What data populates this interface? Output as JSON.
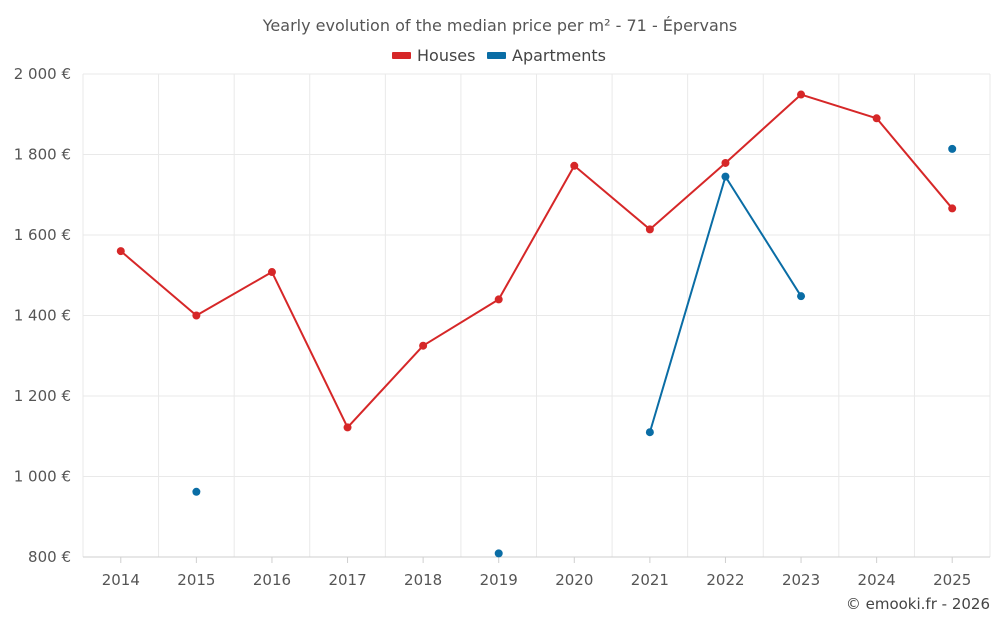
{
  "chart_data": {
    "type": "line",
    "title": "Yearly evolution of the median price per m² - 71 - Épervans",
    "categories": [
      "2014",
      "2015",
      "2016",
      "2017",
      "2018",
      "2019",
      "2020",
      "2021",
      "2022",
      "2023",
      "2024",
      "2025"
    ],
    "series": [
      {
        "name": "Houses",
        "color": "#d62728",
        "values": [
          1560,
          1400,
          1508,
          1122,
          1325,
          1440,
          1772,
          1614,
          1779,
          1949,
          1890,
          1666
        ]
      },
      {
        "name": "Apartments",
        "color": "#0a6da5",
        "values": [
          null,
          962,
          null,
          null,
          null,
          809,
          null,
          1110,
          1745,
          1448,
          null,
          1814
        ]
      }
    ],
    "y_ticks": [
      800,
      1000,
      1200,
      1400,
      1600,
      1800,
      2000
    ],
    "y_tick_labels": [
      "800 €",
      "1 000 €",
      "1 200 €",
      "1 400 €",
      "1 600 €",
      "1 800 €",
      "2 000 €"
    ],
    "ylim": [
      800,
      2000
    ],
    "xlabel": "",
    "ylabel": "",
    "grid": true,
    "legend_position": "top-center"
  },
  "footer": {
    "copyright": "© emooki.fr - 2026"
  }
}
